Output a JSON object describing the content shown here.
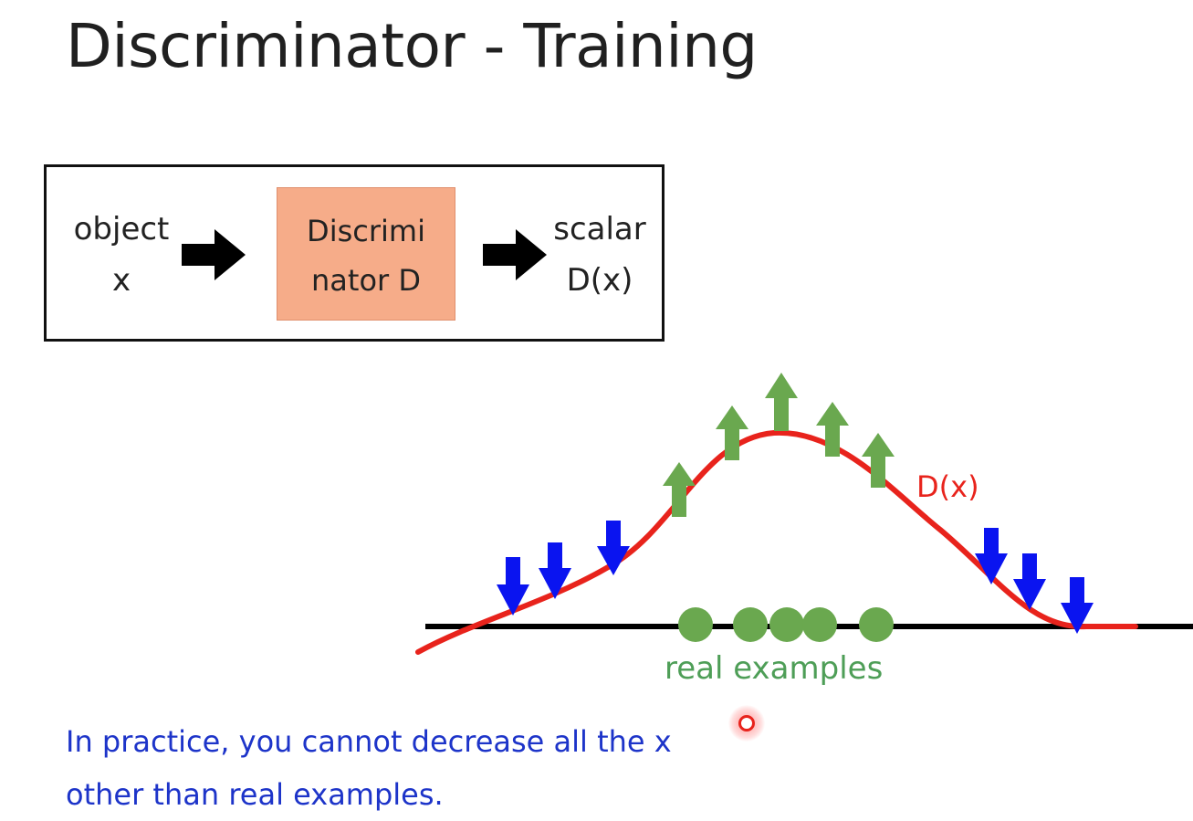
{
  "slide": {
    "title": "Discriminator - Training"
  },
  "pipeline": {
    "input_line1": "object",
    "input_line2": "x",
    "block_line1": "Discrimi",
    "block_line2": "nator D",
    "output_line1": "scalar",
    "output_line2": "D(x)"
  },
  "plot": {
    "curve_label": "D(x)",
    "real_label": "real examples",
    "colors": {
      "curve": "#e8231c",
      "up_arrow": "#6aa84f",
      "down_arrow": "#0a14f0",
      "real_point": "#6aa84f",
      "baseline": "#000000"
    }
  },
  "note": {
    "line1": "In practice, you cannot decrease all the x",
    "line2": "other than real examples."
  },
  "icons": {
    "flow_arrow": "arrow-right-icon",
    "cursor": "pointer-cursor-icon"
  }
}
